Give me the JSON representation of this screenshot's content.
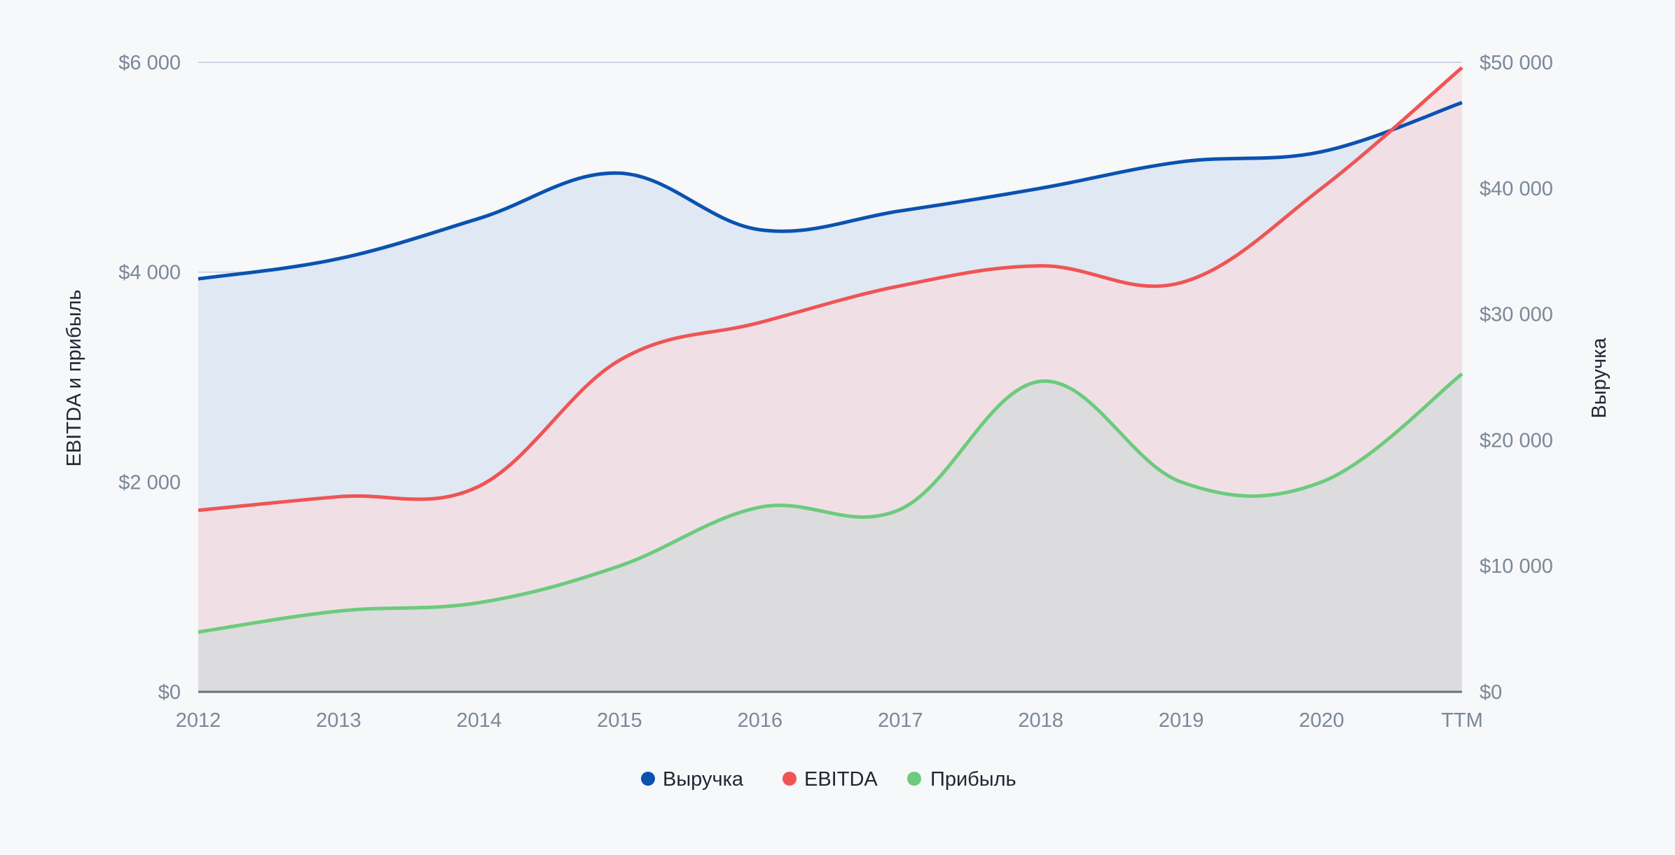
{
  "chart_data": {
    "type": "area",
    "categories": [
      "2012",
      "2013",
      "2014",
      "2015",
      "2016",
      "2017",
      "2018",
      "2019",
      "2020",
      "TTM"
    ],
    "series": [
      {
        "name": "Выручка",
        "axis": "right",
        "color": "#0a52b0",
        "fill": "#dfe8f3",
        "values": [
          32800,
          34400,
          37600,
          41200,
          36700,
          38200,
          40000,
          42100,
          42900,
          46800
        ]
      },
      {
        "name": "EBITDA",
        "axis": "left",
        "color": "#f05454",
        "fill": "#f5dde1",
        "values": [
          1730,
          1860,
          1960,
          3160,
          3520,
          3870,
          4060,
          3900,
          4800,
          5950
        ]
      },
      {
        "name": "Прибыль",
        "axis": "left",
        "color": "#6ccb7c",
        "fill": "#d6dad9",
        "values": [
          570,
          770,
          850,
          1200,
          1760,
          1740,
          2960,
          2000,
          2000,
          3030
        ]
      }
    ],
    "left_axis": {
      "label": "EBITDA и прибыль",
      "range": [
        0,
        6000
      ],
      "ticks": [
        0,
        2000,
        4000,
        6000
      ],
      "tick_labels": [
        "$0",
        "$2 000",
        "$4 000",
        "$6 000"
      ]
    },
    "right_axis": {
      "label": "Выручка",
      "range": [
        0,
        50000
      ],
      "ticks": [
        0,
        10000,
        20000,
        30000,
        40000,
        50000
      ],
      "tick_labels": [
        "$0",
        "$10 000",
        "$20 000",
        "$30 000",
        "$40 000",
        "$50 000"
      ]
    },
    "legend": {
      "position": "bottom",
      "items": [
        "Выручка",
        "EBITDA",
        "Прибыль"
      ]
    },
    "grid": true,
    "gridline_color": "#cfd5e3",
    "baseline_color": "#6b6f75"
  }
}
